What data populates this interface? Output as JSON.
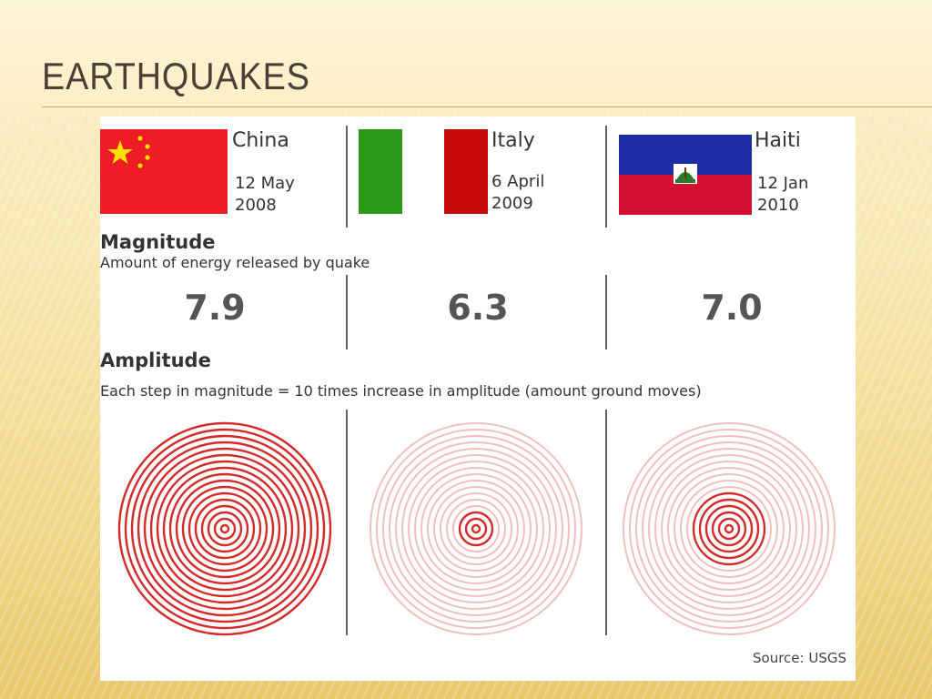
{
  "slide": {
    "title": "Earthquakes"
  },
  "infographic": {
    "quakes": [
      {
        "country": "China",
        "date_line1": "12 May",
        "date_line2": "2008",
        "magnitude": "7.9",
        "flag_colors": [
          "#ee1c25",
          "#ffde00"
        ]
      },
      {
        "country": "Italy",
        "date_line1": "6 April",
        "date_line2": "2009",
        "magnitude": "6.3",
        "flag_colors": [
          "#2e9a1a",
          "#ffffff",
          "#c80a0a"
        ]
      },
      {
        "country": "Haiti",
        "date_line1": "12 Jan",
        "date_line2": "2010",
        "magnitude": "7.0",
        "flag_colors": [
          "#1d2ea6",
          "#d21034"
        ]
      }
    ],
    "magnitude_heading": "Magnitude",
    "magnitude_description": "Amount of energy released by quake",
    "amplitude_heading": "Amplitude",
    "amplitude_description": "Each step in magnitude = 10 times increase in amplitude (amount ground moves)",
    "source": "Source: USGS",
    "ring_color": "#d42a2a"
  }
}
